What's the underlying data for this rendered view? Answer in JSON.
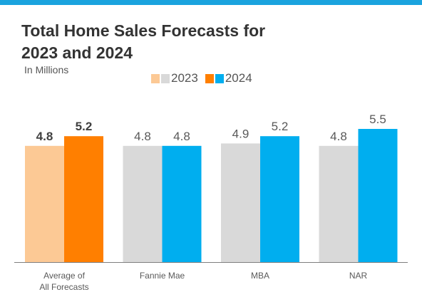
{
  "title_line1": "Total Home Sales Forecasts for",
  "title_line2": "2023 and 2024",
  "subtitle": "In Millions",
  "legend": {
    "label_2023": "2023",
    "label_2024": "2024"
  },
  "colors": {
    "accent_bar": "#1aa3de",
    "avg_2023": "#fcc995",
    "avg_2024": "#ff7f00",
    "other_2023": "#d9d9d9",
    "other_2024": "#00aeef",
    "bold_label": "#404040",
    "normal_label": "#595959",
    "axis_line": "#7f7f7f"
  },
  "chart_data": {
    "type": "bar",
    "categories": [
      "Average of\nAll Forecasts",
      "Fannie Mae",
      "MBA",
      "NAR"
    ],
    "series": [
      {
        "name": "2023",
        "values": [
          4.8,
          4.8,
          4.9,
          4.8
        ]
      },
      {
        "name": "2024",
        "values": [
          5.2,
          4.8,
          5.2,
          5.5
        ]
      }
    ],
    "data_labels": [
      [
        "4.8",
        "4.8",
        "4.9",
        "4.8"
      ],
      [
        "5.2",
        "4.8",
        "5.2",
        "5.5"
      ]
    ],
    "ylim": [
      0,
      6.5
    ],
    "grid": false,
    "legend_position": "top-center",
    "xlabel": "",
    "ylabel": ""
  }
}
